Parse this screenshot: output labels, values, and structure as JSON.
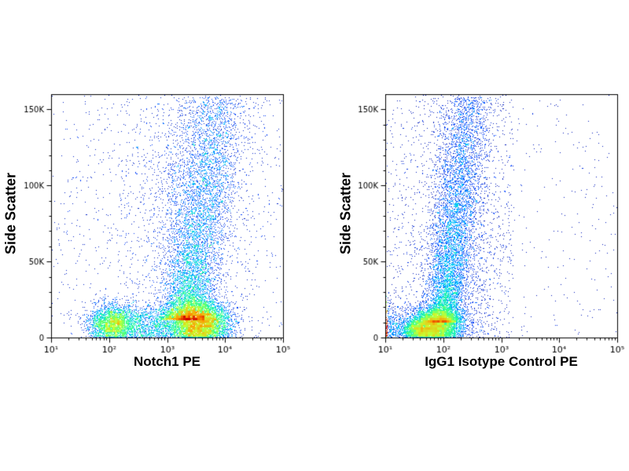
{
  "figure": {
    "background": "#ffffff",
    "kind": "flow-cytometry-density-dot-plots"
  },
  "chart_data": [
    {
      "type": "scatter",
      "subtype": "density_dot_plot",
      "title": "",
      "xlabel": "Notch1 PE",
      "ylabel": "Side Scatter",
      "x_scale": "log10",
      "x_range": [
        10,
        100000
      ],
      "x_ticks": [
        {
          "exp": 1,
          "label": "10¹"
        },
        {
          "exp": 2,
          "label": "10²"
        },
        {
          "exp": 3,
          "label": "10³"
        },
        {
          "exp": 4,
          "label": "10⁴"
        },
        {
          "exp": 5,
          "label": "10⁵"
        }
      ],
      "y_range": [
        0,
        160000
      ],
      "y_ticks": [
        {
          "value": 0,
          "label": "0"
        },
        {
          "value": 50000,
          "label": "50K"
        },
        {
          "value": 100000,
          "label": "100K"
        },
        {
          "value": 150000,
          "label": "150K"
        }
      ],
      "y_minor_step": 10000,
      "grid": false,
      "n_points": 18000,
      "seed": 101,
      "colormap_stops": [
        "#000090",
        "#0040ff",
        "#00c8ff",
        "#2cff96",
        "#c8ff32",
        "#ff9600",
        "#d00000"
      ],
      "populations": [
        {
          "kind": "gauss",
          "name": "main-positive-core",
          "weight": 0.32,
          "logx_mean": 3.55,
          "logx_sd": 0.26,
          "y_mean": 10000,
          "y_sd": 7000
        },
        {
          "kind": "gauss",
          "name": "dim-cluster",
          "weight": 0.13,
          "logx_mean": 2.05,
          "logx_sd": 0.2,
          "y_mean": 9000,
          "y_sd": 6000
        },
        {
          "kind": "gauss",
          "name": "bridge",
          "weight": 0.07,
          "logx_mean": 2.65,
          "logx_sd": 0.33,
          "y_mean": 9000,
          "y_sd": 6500
        },
        {
          "kind": "arm",
          "name": "granulocyte-arm",
          "weight": 0.34,
          "y_min": 12000,
          "y_max": 158000,
          "bias": 2.0,
          "logx_at_ymin": 3.3,
          "logx_at_ymax": 3.88,
          "logx_sd": 0.2
        },
        {
          "kind": "uniform",
          "name": "background",
          "weight": 0.05,
          "logx_min": 1.0,
          "logx_max": 5.0,
          "y_min": 0,
          "y_max": 160000
        },
        {
          "kind": "gauss",
          "name": "upper-haze",
          "weight": 0.09,
          "logx_mean": 3.35,
          "logx_sd": 0.55,
          "y_mean": 85000,
          "y_sd": 45000
        }
      ]
    },
    {
      "type": "scatter",
      "subtype": "density_dot_plot",
      "title": "",
      "xlabel": "IgG1 Isotype Control PE",
      "ylabel": "Side Scatter",
      "x_scale": "log10",
      "x_range": [
        10,
        100000
      ],
      "x_ticks": [
        {
          "exp": 1,
          "label": "10¹"
        },
        {
          "exp": 2,
          "label": "10²"
        },
        {
          "exp": 3,
          "label": "10³"
        },
        {
          "exp": 4,
          "label": "10⁴"
        },
        {
          "exp": 5,
          "label": "10⁵"
        }
      ],
      "y_range": [
        0,
        160000
      ],
      "y_ticks": [
        {
          "value": 0,
          "label": "0"
        },
        {
          "value": 50000,
          "label": "50K"
        },
        {
          "value": 100000,
          "label": "100K"
        },
        {
          "value": 150000,
          "label": "150K"
        }
      ],
      "y_minor_step": 10000,
      "grid": false,
      "n_points": 18000,
      "seed": 202,
      "colormap_stops": [
        "#000090",
        "#0040ff",
        "#00c8ff",
        "#2cff96",
        "#c8ff32",
        "#ff9600",
        "#d00000"
      ],
      "populations": [
        {
          "kind": "gauss",
          "name": "negative-core",
          "weight": 0.31,
          "logx_mean": 1.85,
          "logx_sd": 0.22,
          "y_mean": 8000,
          "y_sd": 5500
        },
        {
          "kind": "gauss",
          "name": "negative-core-low",
          "weight": 0.08,
          "logx_mean": 1.6,
          "logx_sd": 0.18,
          "y_mean": 5000,
          "y_sd": 3500
        },
        {
          "kind": "arm",
          "name": "granulocyte-arm",
          "weight": 0.36,
          "y_min": 10000,
          "y_max": 158000,
          "bias": 2.0,
          "logx_at_ymin": 1.98,
          "logx_at_ymax": 2.45,
          "logx_sd": 0.15
        },
        {
          "kind": "gauss",
          "name": "axis-edge-pileup",
          "weight": 0.1,
          "logx_mean": 0.75,
          "logx_sd": 0.3,
          "y_mean": 9000,
          "y_sd": 8000
        },
        {
          "kind": "uniform",
          "name": "background-near",
          "weight": 0.04,
          "logx_min": 1.0,
          "logx_max": 3.2,
          "y_min": 0,
          "y_max": 160000
        },
        {
          "kind": "uniform",
          "name": "background-far",
          "weight": 0.02,
          "logx_min": 1.0,
          "logx_max": 5.0,
          "y_min": 0,
          "y_max": 160000
        },
        {
          "kind": "gauss",
          "name": "upper-haze",
          "weight": 0.09,
          "logx_mean": 2.3,
          "logx_sd": 0.4,
          "y_mean": 55000,
          "y_sd": 45000
        }
      ]
    }
  ]
}
